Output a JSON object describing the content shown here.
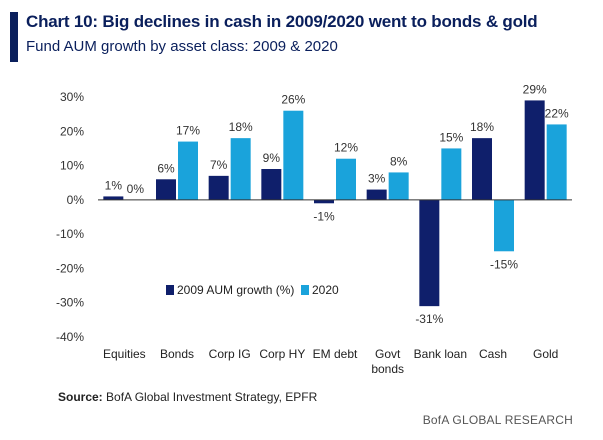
{
  "title": "Chart 10: Big declines in cash in 2009/2020 went to bonds & gold",
  "subtitle": "Fund AUM growth by asset class: 2009 & 2020",
  "source_label": "Source:",
  "source_text": "BofA Global Investment Strategy, EPFR",
  "brand": "BofA GLOBAL RESEARCH",
  "colors": {
    "series_2009": "#0f1f6b",
    "series_2020": "#1aa3db",
    "axis": "#333333"
  },
  "chart_data": {
    "type": "bar",
    "categories": [
      [
        "Equities"
      ],
      [
        "Bonds"
      ],
      [
        "Corp IG"
      ],
      [
        "Corp HY"
      ],
      [
        "EM debt"
      ],
      [
        "Govt",
        "bonds"
      ],
      [
        "Bank loan"
      ],
      [
        "Cash"
      ],
      [
        "Gold"
      ]
    ],
    "series": [
      {
        "name": "2009 AUM growth (%)",
        "values": [
          1,
          6,
          7,
          9,
          -1,
          3,
          -31,
          18,
          29
        ],
        "labels": [
          "1%",
          "6%",
          "7%",
          "9%",
          "-1%",
          "3%",
          "-31%",
          "18%",
          "29%"
        ]
      },
      {
        "name": "2020",
        "values": [
          0,
          17,
          18,
          26,
          12,
          8,
          15,
          -15,
          22
        ],
        "labels": [
          "0%",
          "17%",
          "18%",
          "26%",
          "12%",
          "8%",
          "15%",
          "-15%",
          "22%"
        ]
      }
    ],
    "yticks": [
      30,
      20,
      10,
      0,
      -10,
      -20,
      -30,
      -40
    ],
    "ytick_labels": [
      "30%",
      "20%",
      "10%",
      "0%",
      "-10%",
      "-20%",
      "-30%",
      "-40%"
    ],
    "ylim": [
      -40,
      30
    ],
    "legend_position": "inside, lower center",
    "grid": false
  }
}
